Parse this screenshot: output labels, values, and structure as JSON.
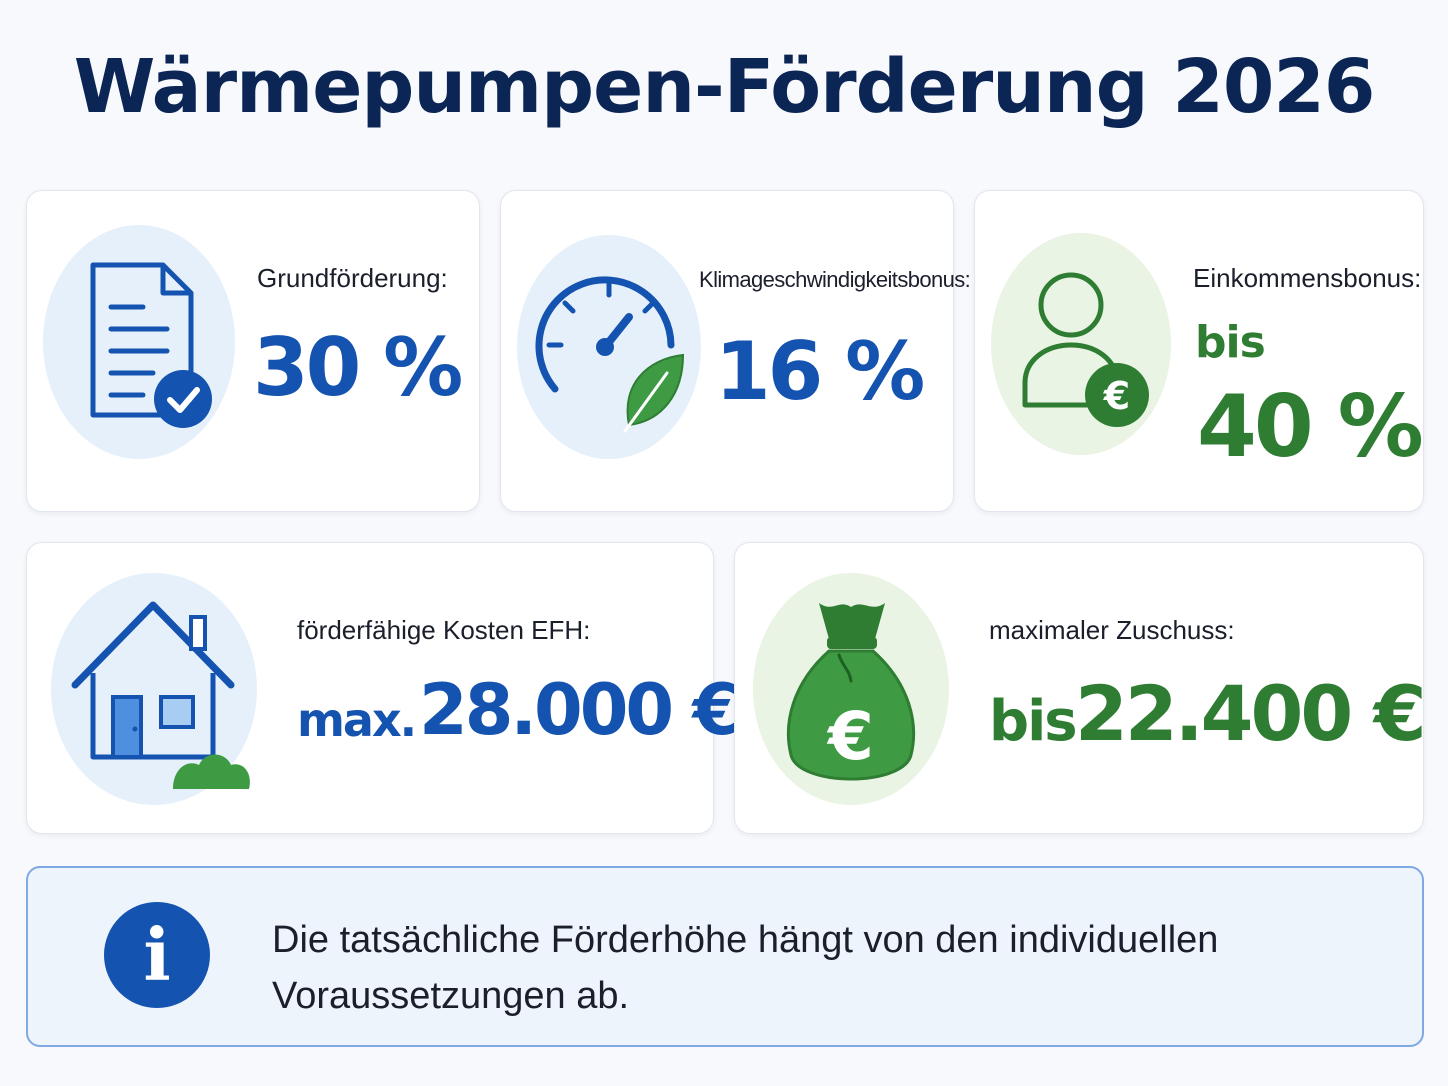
{
  "title": "Wärmepumpen-Förderung 2026",
  "colors": {
    "navy": "#0b2555",
    "blue": "#1453b0",
    "green": "#2e7d32",
    "light_blue_bg": "#e5f0fb",
    "light_green_bg": "#e9f4e4"
  },
  "cards": {
    "grundfoerderung": {
      "icon": "document-check-icon",
      "label": "Grundförderung:",
      "value": "30 %"
    },
    "klimabonus": {
      "icon": "speedometer-leaf-icon",
      "label": "Klimageschwindigkeitsbonus:",
      "value": "16 %"
    },
    "einkommensbonus": {
      "icon": "person-euro-icon",
      "label": "Einkommensbonus:",
      "prefix": "bis",
      "value": "40 %"
    },
    "kosten": {
      "icon": "house-icon",
      "label": "förderfähige Kosten EFH:",
      "prefix": "max.",
      "value": "28.000 €"
    },
    "zuschuss": {
      "icon": "money-bag-euro-icon",
      "label": "maximaler Zuschuss:",
      "prefix": "bis",
      "value": "22.400 €"
    }
  },
  "info": {
    "icon": "info-icon",
    "symbol": "i",
    "text": "Die tatsächliche Förderhöhe hängt von den individuellen Voraussetzungen ab."
  }
}
